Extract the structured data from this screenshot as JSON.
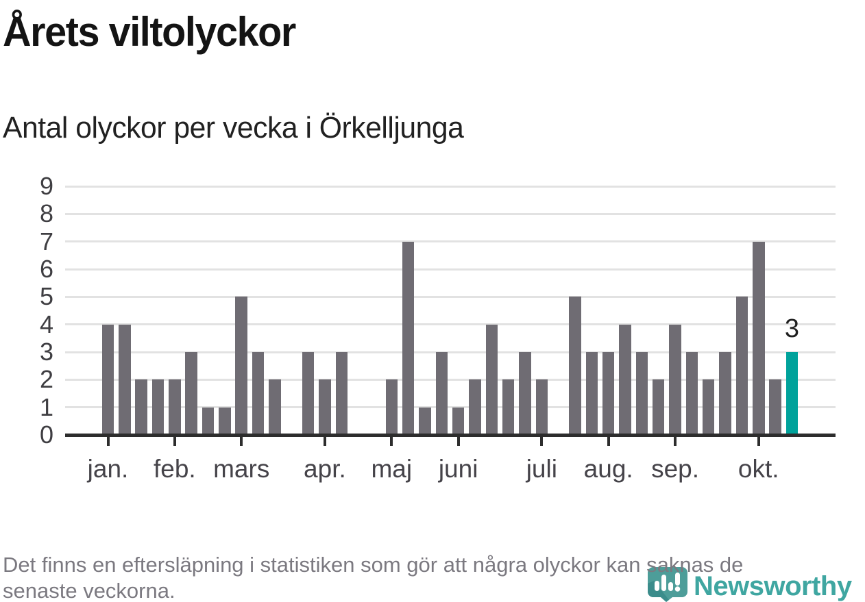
{
  "title": "Årets viltolyckor",
  "subtitle": "Antal olyckor per vecka i Örkelljunga",
  "footer": {
    "line1": "Det finns en eftersläpning i statistiken som gör att några olyckor kan saknas de",
    "line2": "senaste veckorna."
  },
  "branding": {
    "name": "Newsworthy",
    "logo_icon": "bar-chart-speech-bubble"
  },
  "colors": {
    "bar": "#6f6c73",
    "highlight": "#00a29b",
    "gridline": "#e2e2e2",
    "axis": "#2d2d2d",
    "brand_teal": "#3fa6a1",
    "logo_fill": "#4d9d99",
    "logo_shade": "#2d7e7f"
  },
  "chart_data": {
    "type": "bar",
    "title": "Årets viltolyckor",
    "subtitle": "Antal olyckor per vecka i Örkelljunga",
    "xlabel": "",
    "ylabel": "",
    "ylim": [
      0,
      9
    ],
    "grid": "horizontal",
    "y_ticks": [
      0,
      1,
      2,
      3,
      4,
      5,
      6,
      7,
      8,
      9
    ],
    "x_unit": "vecka",
    "values_by_week": [
      4,
      4,
      2,
      2,
      2,
      3,
      1,
      1,
      5,
      3,
      2,
      null,
      3,
      2,
      3,
      null,
      null,
      2,
      7,
      1,
      3,
      1,
      2,
      4,
      2,
      3,
      2,
      null,
      5,
      3,
      3,
      4,
      3,
      2,
      4,
      3,
      2,
      3,
      5,
      7,
      2,
      3
    ],
    "highlight_last_bar": true,
    "last_bar_value_label": "3",
    "month_ticks": [
      {
        "label": "jan.",
        "week": 1
      },
      {
        "label": "feb.",
        "week": 5
      },
      {
        "label": "mars",
        "week": 9
      },
      {
        "label": "apr.",
        "week": 14
      },
      {
        "label": "maj",
        "week": 18
      },
      {
        "label": "juni",
        "week": 22
      },
      {
        "label": "juli",
        "week": 27
      },
      {
        "label": "aug.",
        "week": 31
      },
      {
        "label": "sep.",
        "week": 35
      },
      {
        "label": "okt.",
        "week": 40
      }
    ]
  }
}
